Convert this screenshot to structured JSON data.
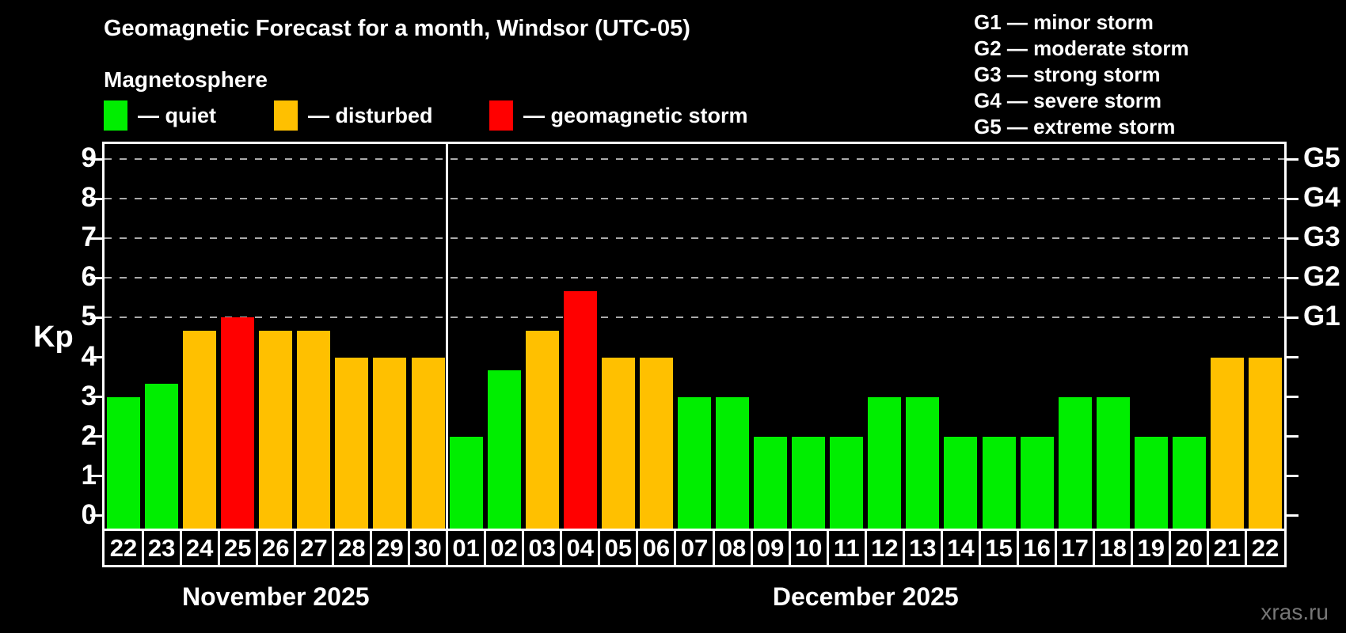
{
  "header": {
    "title": "Geomagnetic Forecast for a month, Windsor (UTC-05)",
    "subtitle": "Magnetosphere",
    "legend": [
      {
        "label": "— quiet",
        "status": "quiet"
      },
      {
        "label": "— disturbed",
        "status": "disturbed"
      },
      {
        "label": "— geomagnetic storm",
        "status": "storm"
      }
    ]
  },
  "g_legend": [
    "G1 — minor storm",
    "G2 — moderate storm",
    "G3 — strong storm",
    "G4 — severe storm",
    "G5 — extreme storm"
  ],
  "colors": {
    "quiet": "#00ee00",
    "disturbed": "#ffc000",
    "storm": "#ff0000",
    "grid": "#aaaaaa",
    "axis": "#ffffff",
    "watermark": "#777777"
  },
  "watermark": "xras.ru",
  "chart_data": {
    "type": "bar",
    "ylabel": "Kp",
    "ylim": [
      -0.32,
      9.38
    ],
    "yticks": [
      0,
      1,
      2,
      3,
      4,
      5,
      6,
      7,
      8,
      9
    ],
    "gridlines_at": [
      5,
      6,
      7,
      8,
      9
    ],
    "grid": "dashed horizontal at storm levels only",
    "legend_position": "top",
    "right_axis": [
      {
        "kp": 5,
        "label": "G1"
      },
      {
        "kp": 6,
        "label": "G2"
      },
      {
        "kp": 7,
        "label": "G3"
      },
      {
        "kp": 8,
        "label": "G4"
      },
      {
        "kp": 9,
        "label": "G5"
      }
    ],
    "months": [
      {
        "label": "November 2025",
        "days": [
          {
            "date": "22",
            "kp": 3.0,
            "status": "quiet"
          },
          {
            "date": "23",
            "kp": 3.33,
            "status": "quiet"
          },
          {
            "date": "24",
            "kp": 4.67,
            "status": "disturbed"
          },
          {
            "date": "25",
            "kp": 5.0,
            "status": "storm"
          },
          {
            "date": "26",
            "kp": 4.67,
            "status": "disturbed"
          },
          {
            "date": "27",
            "kp": 4.67,
            "status": "disturbed"
          },
          {
            "date": "28",
            "kp": 4.0,
            "status": "disturbed"
          },
          {
            "date": "29",
            "kp": 4.0,
            "status": "disturbed"
          },
          {
            "date": "30",
            "kp": 4.0,
            "status": "disturbed"
          }
        ]
      },
      {
        "label": "December 2025",
        "days": [
          {
            "date": "01",
            "kp": 2.0,
            "status": "quiet"
          },
          {
            "date": "02",
            "kp": 3.67,
            "status": "quiet"
          },
          {
            "date": "03",
            "kp": 4.67,
            "status": "disturbed"
          },
          {
            "date": "04",
            "kp": 5.67,
            "status": "storm"
          },
          {
            "date": "05",
            "kp": 4.0,
            "status": "disturbed"
          },
          {
            "date": "06",
            "kp": 4.0,
            "status": "disturbed"
          },
          {
            "date": "07",
            "kp": 3.0,
            "status": "quiet"
          },
          {
            "date": "08",
            "kp": 3.0,
            "status": "quiet"
          },
          {
            "date": "09",
            "kp": 2.0,
            "status": "quiet"
          },
          {
            "date": "10",
            "kp": 2.0,
            "status": "quiet"
          },
          {
            "date": "11",
            "kp": 2.0,
            "status": "quiet"
          },
          {
            "date": "12",
            "kp": 3.0,
            "status": "quiet"
          },
          {
            "date": "13",
            "kp": 3.0,
            "status": "quiet"
          },
          {
            "date": "14",
            "kp": 2.0,
            "status": "quiet"
          },
          {
            "date": "15",
            "kp": 2.0,
            "status": "quiet"
          },
          {
            "date": "16",
            "kp": 2.0,
            "status": "quiet"
          },
          {
            "date": "17",
            "kp": 3.0,
            "status": "quiet"
          },
          {
            "date": "18",
            "kp": 3.0,
            "status": "quiet"
          },
          {
            "date": "19",
            "kp": 2.0,
            "status": "quiet"
          },
          {
            "date": "20",
            "kp": 2.0,
            "status": "quiet"
          },
          {
            "date": "21",
            "kp": 4.0,
            "status": "disturbed"
          },
          {
            "date": "22",
            "kp": 4.0,
            "status": "disturbed"
          }
        ]
      }
    ]
  }
}
